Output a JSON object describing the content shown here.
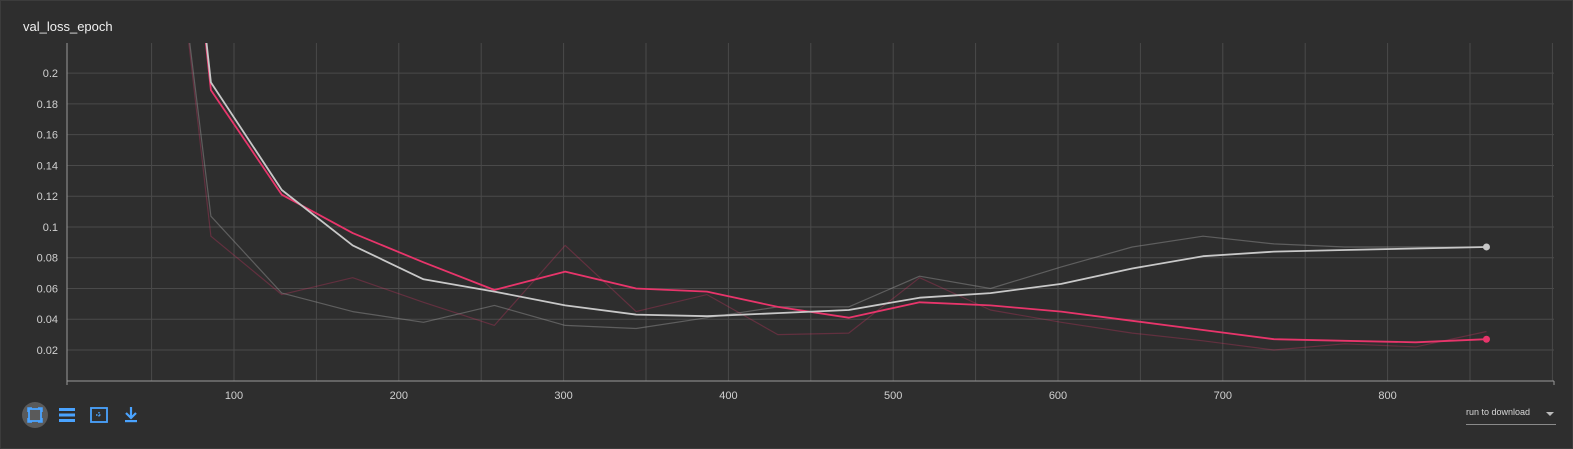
{
  "card": {
    "title": "val_loss_epoch"
  },
  "toolbar": {
    "buttons": [
      {
        "name": "fit-domain-icon"
      },
      {
        "name": "toggle-y-log-icon"
      },
      {
        "name": "select-region-icon"
      },
      {
        "name": "download-icon"
      }
    ]
  },
  "run_select": {
    "label": "run to download"
  },
  "colors": {
    "pink": "#e8356b",
    "gray": "#c8c8c8",
    "grid": "#4a4a4a",
    "axis": "#9a9a9a"
  },
  "chart_data": {
    "type": "line",
    "title": "val_loss_epoch",
    "xlabel": "",
    "ylabel": "",
    "xlim": [
      0,
      1000
    ],
    "ylim": [
      0.0,
      0.22
    ],
    "xticks": [
      100,
      200,
      300,
      400,
      500,
      600,
      700,
      800
    ],
    "yticks": [
      0.02,
      0.04,
      0.06,
      0.08,
      0.1,
      0.12,
      0.14,
      0.16,
      0.18,
      0.2
    ],
    "grid": true,
    "series": [
      {
        "color": "#e8356b",
        "kind": "raw",
        "x": [
          64,
          86,
          129,
          172,
          215,
          258,
          301,
          344,
          387,
          430,
          473,
          516,
          559,
          602,
          645,
          688,
          731,
          774,
          817,
          860
        ],
        "y": [
          0.3,
          0.094,
          0.056,
          0.067,
          0.051,
          0.036,
          0.088,
          0.045,
          0.056,
          0.03,
          0.031,
          0.067,
          0.046,
          0.038,
          0.031,
          0.026,
          0.02,
          0.024,
          0.022,
          0.032
        ]
      },
      {
        "color": "#9a9a9a",
        "kind": "raw",
        "x": [
          64,
          86,
          129,
          172,
          215,
          258,
          301,
          344,
          387,
          430,
          473,
          516,
          559,
          602,
          645,
          688,
          731,
          774,
          817,
          860
        ],
        "y": [
          0.3,
          0.107,
          0.057,
          0.045,
          0.038,
          0.049,
          0.036,
          0.034,
          0.041,
          0.048,
          0.048,
          0.068,
          0.06,
          0.074,
          0.087,
          0.094,
          0.089,
          0.087,
          0.087,
          0.087
        ]
      },
      {
        "color": "#e8356b",
        "kind": "smoothed",
        "x": [
          75,
          86,
          129,
          172,
          215,
          258,
          301,
          344,
          387,
          430,
          473,
          516,
          559,
          602,
          645,
          688,
          731,
          774,
          817,
          860
        ],
        "y": [
          0.3,
          0.189,
          0.121,
          0.096,
          0.077,
          0.059,
          0.071,
          0.06,
          0.058,
          0.048,
          0.041,
          0.051,
          0.049,
          0.045,
          0.039,
          0.033,
          0.027,
          0.026,
          0.025,
          0.027
        ]
      },
      {
        "color": "#c8c8c8",
        "kind": "smoothed",
        "x": [
          75,
          86,
          129,
          172,
          215,
          258,
          301,
          344,
          387,
          430,
          473,
          516,
          559,
          602,
          645,
          688,
          731,
          774,
          817,
          860
        ],
        "y": [
          0.3,
          0.194,
          0.124,
          0.088,
          0.066,
          0.058,
          0.049,
          0.043,
          0.042,
          0.044,
          0.046,
          0.054,
          0.057,
          0.063,
          0.073,
          0.081,
          0.084,
          0.085,
          0.086,
          0.087
        ]
      }
    ]
  }
}
